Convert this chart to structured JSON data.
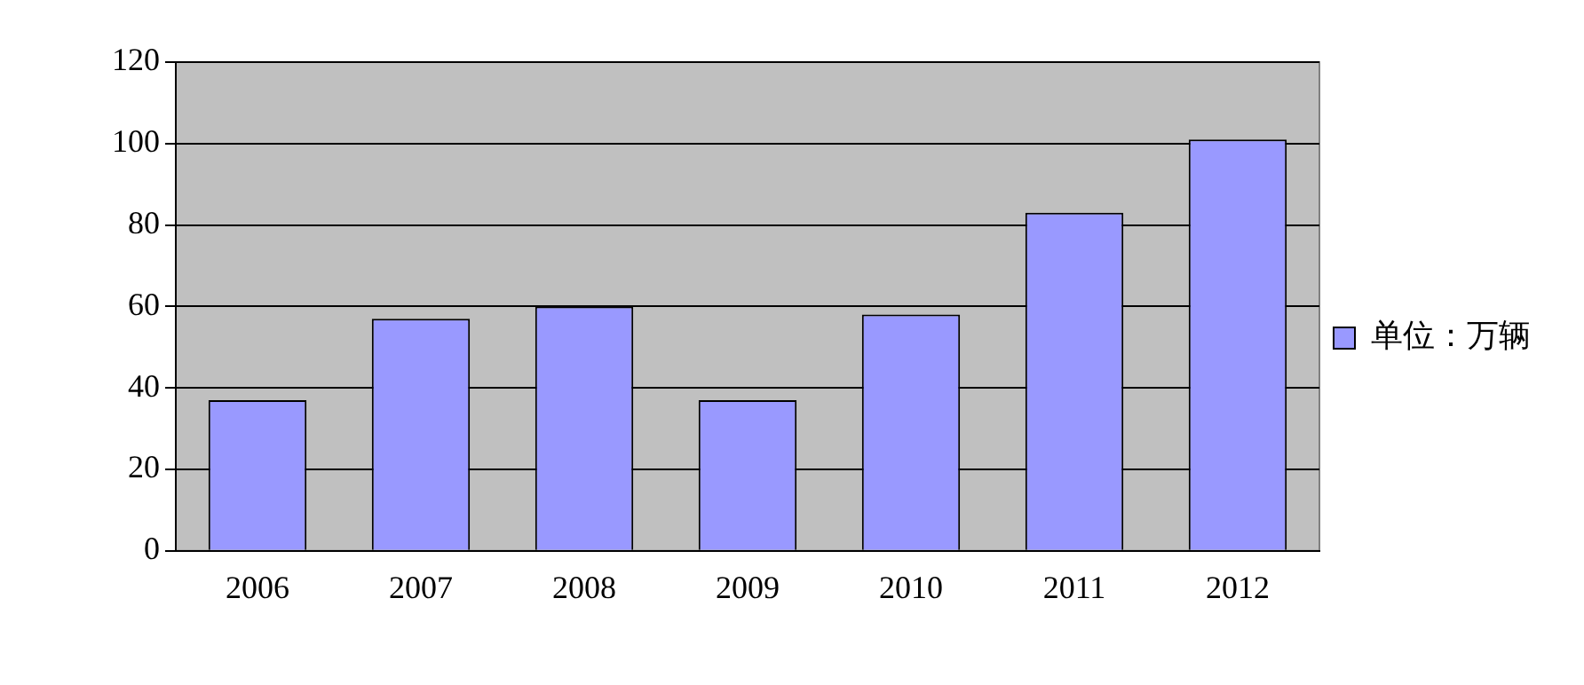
{
  "chart_data": {
    "type": "bar",
    "categories": [
      "2006",
      "2007",
      "2008",
      "2009",
      "2010",
      "2011",
      "2012"
    ],
    "series": [
      {
        "name": "单位：万辆",
        "color": "#9999ff",
        "values": [
          37,
          57,
          60,
          37,
          58,
          83,
          101
        ]
      }
    ],
    "ylim": [
      0,
      120
    ],
    "yticks": [
      0,
      20,
      40,
      60,
      80,
      100,
      120
    ],
    "grid": "y",
    "legend": "right"
  }
}
